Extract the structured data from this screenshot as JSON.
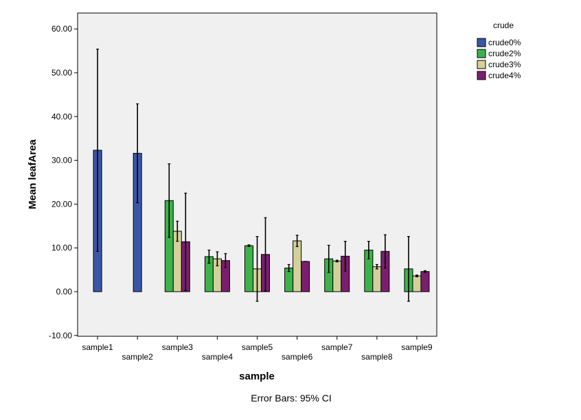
{
  "chart_data": {
    "type": "bar",
    "xlabel": "sample",
    "ylabel": "Mean leafArea",
    "ylim": [
      -10,
      65
    ],
    "yticks": [
      -10,
      0,
      10,
      20,
      30,
      40,
      50,
      60
    ],
    "ytick_labels": [
      "-10.00",
      "0.00",
      "10.00",
      "20.00",
      "30.00",
      "40.00",
      "50.00",
      "60.00"
    ],
    "grid": false,
    "categories": [
      "sample1",
      "sample2",
      "sample3",
      "sample4",
      "sample5",
      "sample6",
      "sample7",
      "sample8",
      "sample9"
    ],
    "legend": {
      "title": "crude",
      "placement": "right"
    },
    "series": [
      {
        "name": "crude0%",
        "color": "#3a57a7",
        "values": [
          32.3,
          31.6,
          null,
          null,
          null,
          null,
          null,
          null,
          null
        ],
        "ci_low": [
          9.2,
          20.3,
          null,
          null,
          null,
          null,
          null,
          null,
          null
        ],
        "ci_high": [
          55.4,
          42.9,
          null,
          null,
          null,
          null,
          null,
          null,
          null
        ]
      },
      {
        "name": "crude2%",
        "color": "#3cb34a",
        "values": [
          null,
          null,
          20.8,
          8.0,
          10.5,
          5.4,
          7.5,
          9.5,
          5.2
        ],
        "ci_low": [
          null,
          null,
          12.4,
          6.5,
          10.3,
          4.6,
          4.4,
          7.5,
          -2.2
        ],
        "ci_high": [
          null,
          null,
          29.2,
          9.5,
          10.7,
          6.2,
          10.6,
          11.5,
          12.6
        ]
      },
      {
        "name": "crude3%",
        "color": "#d4d09b",
        "values": [
          null,
          null,
          13.8,
          7.5,
          5.2,
          11.6,
          7.0,
          5.7,
          3.6
        ],
        "ci_low": [
          null,
          null,
          11.5,
          5.9,
          -2.2,
          10.3,
          6.8,
          5.2,
          3.4
        ],
        "ci_high": [
          null,
          null,
          16.1,
          9.1,
          12.6,
          12.9,
          7.2,
          6.2,
          3.8
        ]
      },
      {
        "name": "crude4%",
        "color": "#7a1f6e",
        "values": [
          null,
          null,
          11.4,
          7.1,
          8.5,
          6.9,
          8.1,
          9.2,
          4.6
        ],
        "ci_low": [
          null,
          null,
          0.3,
          5.5,
          0.1,
          6.9,
          4.7,
          5.4,
          4.4
        ],
        "ci_high": [
          null,
          null,
          22.5,
          8.7,
          16.9,
          6.9,
          11.5,
          13.0,
          4.8
        ]
      }
    ]
  },
  "footnote": "Error Bars: 95% CI"
}
